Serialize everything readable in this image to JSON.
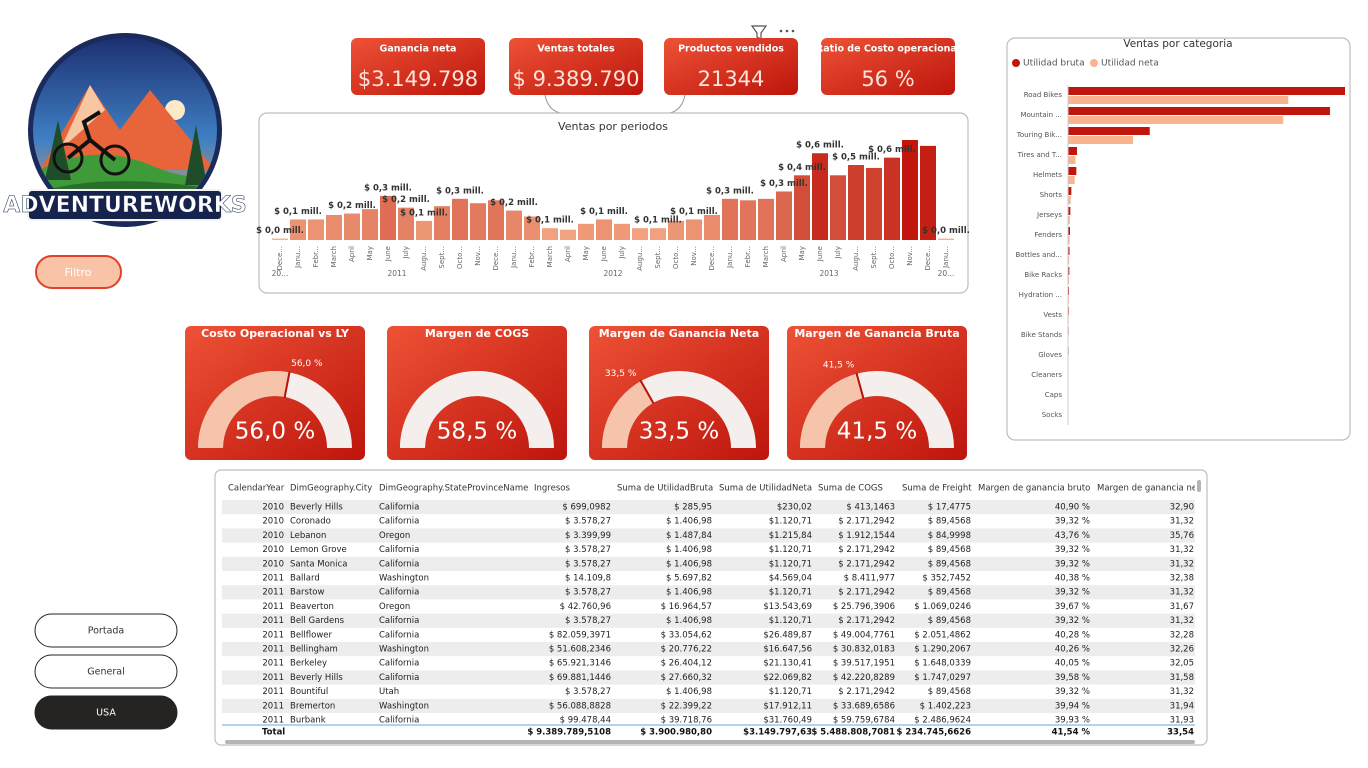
{
  "logo": {
    "text": "ADVENTUREWORKS"
  },
  "filter_button": "Filtro",
  "nav_buttons": [
    "Portada",
    "General",
    "USA"
  ],
  "kpis": [
    {
      "title": "Ganancia neta",
      "value": "$3.149.798"
    },
    {
      "title": "Ventas totales",
      "value": "$ 9.389.790"
    },
    {
      "title": "Productos vendidos",
      "value": "21344"
    },
    {
      "title": "Ratio de Costo operacional",
      "value": "56 %"
    }
  ],
  "period_chart": {
    "type": "bar",
    "title": "Ventas por periodos",
    "categories": [
      "Dece...",
      "Janu...",
      "Febr...",
      "March",
      "April",
      "May",
      "June",
      "July",
      "Augu...",
      "Sept...",
      "Octo...",
      "Nov...",
      "Dece...",
      "Janu...",
      "Febr...",
      "March",
      "April",
      "May",
      "June",
      "July",
      "Augu...",
      "Sept...",
      "Octo...",
      "Nov...",
      "Dece...",
      "Janu...",
      "Febr...",
      "March",
      "April",
      "May",
      "June",
      "July",
      "Augu...",
      "Sept...",
      "Octo...",
      "Nov...",
      "Dece...",
      "Janu..."
    ],
    "year_labels": [
      "20...",
      "2011",
      "2012",
      "2013",
      "20..."
    ],
    "values": [
      0.01,
      0.14,
      0.14,
      0.17,
      0.18,
      0.21,
      0.3,
      0.22,
      0.13,
      0.23,
      0.28,
      0.25,
      0.27,
      0.2,
      0.16,
      0.08,
      0.07,
      0.11,
      0.14,
      0.11,
      0.08,
      0.08,
      0.13,
      0.14,
      0.17,
      0.28,
      0.27,
      0.28,
      0.33,
      0.44,
      0.59,
      0.44,
      0.51,
      0.49,
      0.56,
      0.68,
      0.64,
      0.01
    ],
    "value_labels": [
      "$ 0,0 mill.",
      "$ 0,1 mill.",
      null,
      null,
      "$ 0,2 mill.",
      null,
      "$ 0,3 mill.",
      "$ 0,2 mill.",
      "$ 0,1 mill.",
      null,
      "$ 0,3 mill.",
      null,
      null,
      "$ 0,2 mill.",
      null,
      "$ 0,1 mill.",
      null,
      null,
      "$ 0,1 mill.",
      null,
      null,
      "$ 0,1 mill.",
      null,
      "$ 0,1 mill.",
      null,
      "$ 0,3 mill.",
      null,
      null,
      "$ 0,3 mill.",
      "$ 0,4 mill.",
      "$ 0,6 mill.",
      null,
      "$ 0,5 mill.",
      null,
      "$ 0,6 mill.",
      null,
      null,
      "$ 0,0 mill."
    ],
    "color_low": "#f7b48e",
    "color_high": "#c0160c"
  },
  "category_chart": {
    "type": "hbar",
    "title": "Ventas por categoria",
    "legend": "top-left",
    "categories": [
      "Road Bikes",
      "Mountain ...",
      "Touring Bik...",
      "Tires and T...",
      "Helmets",
      "Shorts",
      "Jerseys",
      "Fenders",
      "Bottles and...",
      "Bike Racks",
      "Hydration ...",
      "Vests",
      "Bike Stands",
      "Gloves",
      "Cleaners",
      "Caps",
      "Socks"
    ],
    "series": [
      {
        "name": "Utilidad bruta",
        "color": "#c0160c",
        "values": [
          1.66,
          1.57,
          0.49,
          0.054,
          0.05,
          0.02,
          0.014,
          0.012,
          0.009,
          0.008,
          0.006,
          0.005,
          0.004,
          0.004,
          0.002,
          0.002,
          0.001
        ]
      },
      {
        "name": "Utilidad neta",
        "color": "#f7b48e",
        "values": [
          1.32,
          1.29,
          0.39,
          0.045,
          0.04,
          0.016,
          0.011,
          0.01,
          0.007,
          0.006,
          0.005,
          0.004,
          0.003,
          0.003,
          0.0015,
          0.0015,
          0.001
        ]
      }
    ]
  },
  "gauges": [
    {
      "type": "gauge",
      "title": "Costo Operacional vs LY",
      "ylim": [
        0,
        100
      ],
      "value": 56,
      "value_label": "56,0 %",
      "target": 56,
      "target_label": "56,0 %",
      "fill_color": "#f6c3ab"
    },
    {
      "type": "gauge",
      "title": "Margen de COGS",
      "ylim": [
        0,
        100
      ],
      "value": 58.5,
      "value_label": "58,5 %",
      "fill_color": "#f4efed"
    },
    {
      "type": "gauge",
      "title": "Margen de Ganancia Neta",
      "ylim": [
        0,
        100
      ],
      "value": 33.5,
      "value_label": "33,5 %",
      "target": 33.5,
      "target_label": "33,5 %",
      "fill_color": "#f6c3ab"
    },
    {
      "type": "gauge",
      "title": "Margen de Ganancia Bruta",
      "ylim": [
        0,
        100
      ],
      "value": 41.5,
      "value_label": "41,5 %",
      "target": 41.5,
      "target_label": "41,5 %",
      "fill_color": "#f6c3ab"
    }
  ],
  "table": {
    "columns": [
      "CalendarYear",
      "DimGeography.City",
      "DimGeography.StateProvinceName",
      "Ingresos",
      "Suma de UtilidadBruta",
      "Suma de UtilidadNeta",
      "Suma de COGS",
      "Suma de Freight",
      "Margen de ganancia bruto",
      "Margen de ganancia ne"
    ],
    "rows": [
      [
        "2010",
        "Beverly Hills",
        "California",
        "$ 699,0982",
        "$ 285,95",
        "$230,02",
        "$ 413,1463",
        "$ 17,4775",
        "40,90 %",
        "32,90"
      ],
      [
        "2010",
        "Coronado",
        "California",
        "$ 3.578,27",
        "$ 1.406,98",
        "$1.120,71",
        "$ 2.171,2942",
        "$ 89,4568",
        "39,32 %",
        "31,32"
      ],
      [
        "2010",
        "Lebanon",
        "Oregon",
        "$ 3.399,99",
        "$ 1.487,84",
        "$1.215,84",
        "$ 1.912,1544",
        "$ 84,9998",
        "43,76 %",
        "35,76"
      ],
      [
        "2010",
        "Lemon Grove",
        "California",
        "$ 3.578,27",
        "$ 1.406,98",
        "$1.120,71",
        "$ 2.171,2942",
        "$ 89,4568",
        "39,32 %",
        "31,32"
      ],
      [
        "2010",
        "Santa Monica",
        "California",
        "$ 3.578,27",
        "$ 1.406,98",
        "$1.120,71",
        "$ 2.171,2942",
        "$ 89,4568",
        "39,32 %",
        "31,32"
      ],
      [
        "2011",
        "Ballard",
        "Washington",
        "$ 14.109,8",
        "$ 5.697,82",
        "$4.569,04",
        "$ 8.411,977",
        "$ 352,7452",
        "40,38 %",
        "32,38"
      ],
      [
        "2011",
        "Barstow",
        "California",
        "$ 3.578,27",
        "$ 1.406,98",
        "$1.120,71",
        "$ 2.171,2942",
        "$ 89,4568",
        "39,32 %",
        "31,32"
      ],
      [
        "2011",
        "Beaverton",
        "Oregon",
        "$ 42.760,96",
        "$ 16.964,57",
        "$13.543,69",
        "$ 25.796,3906",
        "$ 1.069,0246",
        "39,67 %",
        "31,67"
      ],
      [
        "2011",
        "Bell Gardens",
        "California",
        "$ 3.578,27",
        "$ 1.406,98",
        "$1.120,71",
        "$ 2.171,2942",
        "$ 89,4568",
        "39,32 %",
        "31,32"
      ],
      [
        "2011",
        "Bellflower",
        "California",
        "$ 82.059,3971",
        "$ 33.054,62",
        "$26.489,87",
        "$ 49.004,7761",
        "$ 2.051,4862",
        "40,28 %",
        "32,28"
      ],
      [
        "2011",
        "Bellingham",
        "Washington",
        "$ 51.608,2346",
        "$ 20.776,22",
        "$16.647,56",
        "$ 30.832,0183",
        "$ 1.290,2067",
        "40,26 %",
        "32,26"
      ],
      [
        "2011",
        "Berkeley",
        "California",
        "$ 65.921,3146",
        "$ 26.404,12",
        "$21.130,41",
        "$ 39.517,1951",
        "$ 1.648,0339",
        "40,05 %",
        "32,05"
      ],
      [
        "2011",
        "Beverly Hills",
        "California",
        "$ 69.881,1446",
        "$ 27.660,32",
        "$22.069,82",
        "$ 42.220,8289",
        "$ 1.747,0297",
        "39,58 %",
        "31,58"
      ],
      [
        "2011",
        "Bountiful",
        "Utah",
        "$ 3.578,27",
        "$ 1.406,98",
        "$1.120,71",
        "$ 2.171,2942",
        "$ 89,4568",
        "39,32 %",
        "31,32"
      ],
      [
        "2011",
        "Bremerton",
        "Washington",
        "$ 56.088,8828",
        "$ 22.399,22",
        "$17.912,11",
        "$ 33.689,6586",
        "$ 1.402,223",
        "39,94 %",
        "31,94"
      ],
      [
        "2011",
        "Burbank",
        "California",
        "$ 99.478,44",
        "$ 39.718,76",
        "$31.760,49",
        "$ 59.759,6784",
        "$ 2.486,9624",
        "39,93 %",
        "31,93"
      ]
    ],
    "total": [
      "Total",
      "$ 9.389.789,5108",
      "$ 3.900.980,80",
      "$3.149.797,63",
      "$ 5.488.808,7081",
      "$ 234.745,6626",
      "41,54 %",
      "33,54"
    ]
  }
}
